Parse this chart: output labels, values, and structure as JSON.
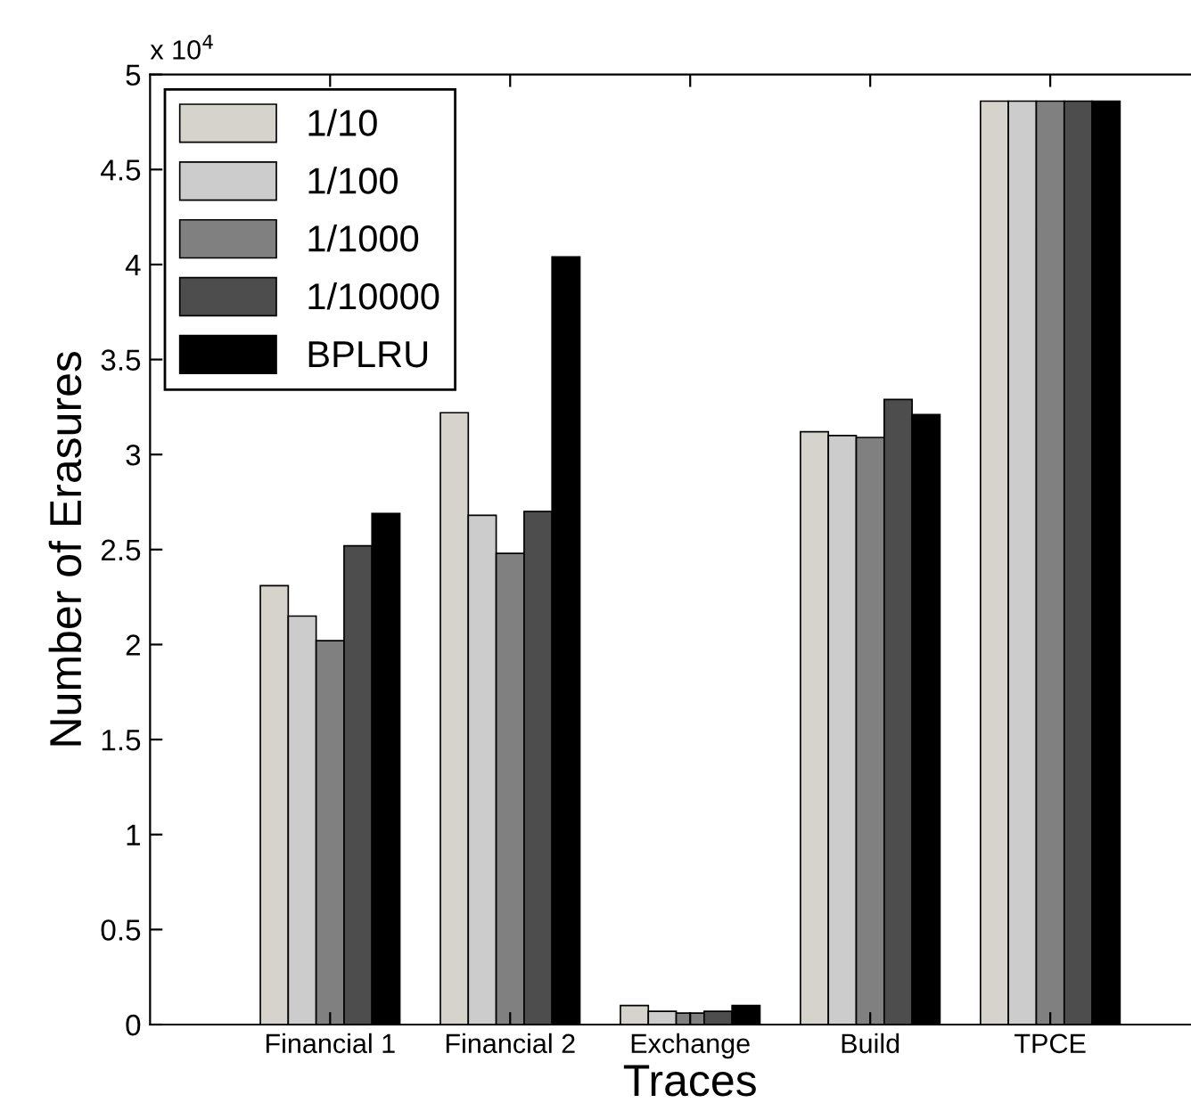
{
  "chart_data": {
    "type": "bar",
    "xlabel": "Traces",
    "ylabel": "Number of Erasures",
    "annotations": [
      "x 10$^{4}$"
    ],
    "categories": [
      "Financial 1",
      "Financial 2",
      "Exchange",
      "Build",
      "TPCE"
    ],
    "series": [
      {
        "name": "1/10",
        "color": "#d6d2cc",
        "values": [
          2.31,
          3.22,
          0.1,
          3.12,
          4.86
        ]
      },
      {
        "name": "1/100",
        "color": "#cccccc",
        "values": [
          2.15,
          2.68,
          0.07,
          3.1,
          4.86
        ]
      },
      {
        "name": "1/1000",
        "color": "#808080",
        "values": [
          2.02,
          2.48,
          0.06,
          3.09,
          4.86
        ]
      },
      {
        "name": "1/10000",
        "color": "#4d4d4d",
        "values": [
          2.52,
          2.7,
          0.07,
          3.29,
          4.86
        ]
      },
      {
        "name": "BPLRU",
        "color": "#000000",
        "values": [
          2.69,
          4.04,
          0.1,
          3.21,
          4.86
        ]
      }
    ],
    "ylim": [
      0,
      5
    ],
    "yticks": [
      0,
      0.5,
      1,
      1.5,
      2,
      2.5,
      3,
      3.5,
      4,
      4.5,
      5
    ],
    "grid": false,
    "legend": "top left"
  }
}
